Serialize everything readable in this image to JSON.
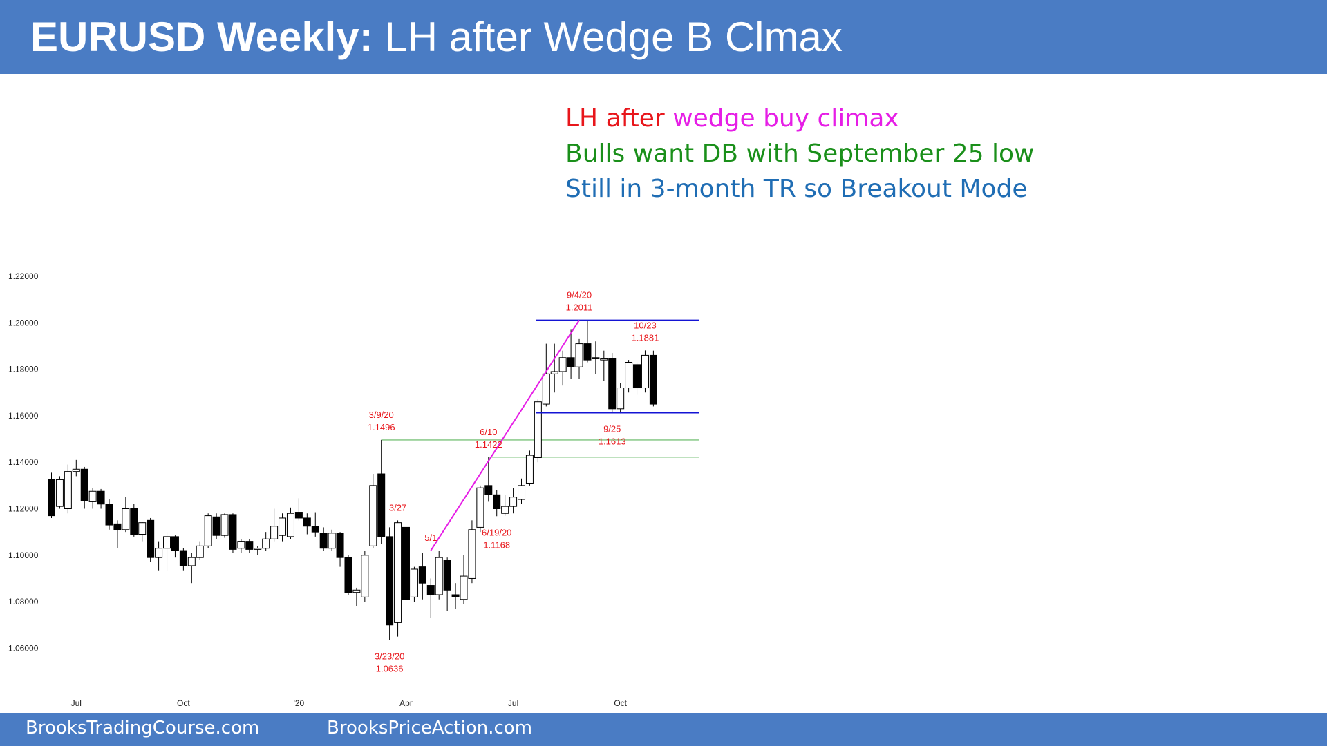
{
  "header": {
    "title_bold": "EURUSD Weekly:",
    "title_rest": " LH after Wedge B Clmax"
  },
  "notes": {
    "line1_a": "LH after ",
    "line1_b": "wedge buy climax",
    "line2": "Bulls want DB with September 25 low",
    "line3": "Still in 3-month TR so Breakout Mode"
  },
  "footer": {
    "left": "BrooksTradingCourse.com",
    "right": "BrooksPriceAction.com"
  },
  "colors": {
    "bar": "#4a7cc4",
    "red": "#e8161b",
    "magenta": "#e61ee6",
    "green": "#1a8f1a",
    "blue": "#1f6db4",
    "channel": "#1414d4",
    "level": "#7cc37c"
  },
  "chart_data": {
    "type": "candlestick",
    "ylim": [
      1.052,
      1.224
    ],
    "yticks": [
      "1.22000",
      "1.20000",
      "1.18000",
      "1.16000",
      "1.14000",
      "1.12000",
      "1.10000",
      "1.08000",
      "1.06000"
    ],
    "xticks": [
      {
        "label": "Jul",
        "i": 3
      },
      {
        "label": "Oct",
        "i": 16
      },
      {
        "label": "'20",
        "i": 30
      },
      {
        "label": "Apr",
        "i": 43
      },
      {
        "label": "Jul",
        "i": 56
      },
      {
        "label": "Oct",
        "i": 69
      }
    ],
    "candles": [
      [
        1.1325,
        1.1355,
        1.116,
        1.117
      ],
      [
        1.121,
        1.134,
        1.12,
        1.1325
      ],
      [
        1.12,
        1.139,
        1.118,
        1.136
      ],
      [
        1.136,
        1.141,
        1.134,
        1.137
      ],
      [
        1.137,
        1.138,
        1.12,
        1.1235
      ],
      [
        1.123,
        1.129,
        1.12,
        1.1275
      ],
      [
        1.1275,
        1.1285,
        1.12,
        1.122
      ],
      [
        1.122,
        1.124,
        1.111,
        1.113
      ],
      [
        1.1135,
        1.115,
        1.103,
        1.111
      ],
      [
        1.111,
        1.125,
        1.11,
        1.12
      ],
      [
        1.12,
        1.122,
        1.108,
        1.109
      ],
      [
        1.109,
        1.1145,
        1.106,
        1.114
      ],
      [
        1.115,
        1.116,
        1.097,
        1.099
      ],
      [
        1.099,
        1.106,
        1.0935,
        1.103
      ],
      [
        1.103,
        1.11,
        1.093,
        1.108
      ],
      [
        1.108,
        1.1085,
        1.099,
        1.102
      ],
      [
        1.102,
        1.103,
        1.0935,
        1.0955
      ],
      [
        1.0955,
        1.101,
        1.088,
        1.099
      ],
      [
        1.099,
        1.106,
        1.098,
        1.104
      ],
      [
        1.104,
        1.118,
        1.103,
        1.117
      ],
      [
        1.1165,
        1.118,
        1.107,
        1.1085
      ],
      [
        1.1085,
        1.118,
        1.1075,
        1.1175
      ],
      [
        1.1175,
        1.118,
        1.101,
        1.1025
      ],
      [
        1.103,
        1.107,
        1.101,
        1.106
      ],
      [
        1.106,
        1.107,
        1.101,
        1.1025
      ],
      [
        1.1025,
        1.104,
        1.1,
        1.103
      ],
      [
        1.103,
        1.11,
        1.102,
        1.107
      ],
      [
        1.107,
        1.12,
        1.106,
        1.1125
      ],
      [
        1.1085,
        1.118,
        1.106,
        1.116
      ],
      [
        1.108,
        1.1205,
        1.107,
        1.118
      ],
      [
        1.1185,
        1.1245,
        1.115,
        1.116
      ],
      [
        1.116,
        1.118,
        1.109,
        1.1125
      ],
      [
        1.1125,
        1.1185,
        1.108,
        1.11
      ],
      [
        1.1095,
        1.112,
        1.102,
        1.103
      ],
      [
        1.103,
        1.111,
        1.102,
        1.1095
      ],
      [
        1.1095,
        1.11,
        1.095,
        1.099
      ],
      [
        1.099,
        1.1,
        1.083,
        1.084
      ],
      [
        1.084,
        1.086,
        1.078,
        1.085
      ],
      [
        1.082,
        1.102,
        1.08,
        1.1
      ],
      [
        1.104,
        1.135,
        1.103,
        1.13
      ],
      [
        1.135,
        1.1496,
        1.105,
        1.108
      ],
      [
        1.108,
        1.112,
        1.0636,
        1.07
      ],
      [
        1.071,
        1.115,
        1.065,
        1.114
      ],
      [
        1.112,
        1.113,
        1.079,
        1.081
      ],
      [
        1.082,
        1.095,
        1.08,
        1.094
      ],
      [
        1.095,
        1.101,
        1.081,
        1.088
      ],
      [
        1.087,
        1.09,
        1.073,
        1.083
      ],
      [
        1.083,
        1.102,
        1.081,
        1.099
      ],
      [
        1.098,
        1.099,
        1.076,
        1.085
      ],
      [
        1.083,
        1.088,
        1.077,
        1.082
      ],
      [
        1.081,
        1.1,
        1.079,
        1.091
      ],
      [
        1.09,
        1.115,
        1.088,
        1.111
      ],
      [
        1.112,
        1.13,
        1.11,
        1.129
      ],
      [
        1.13,
        1.1422,
        1.123,
        1.126
      ],
      [
        1.126,
        1.128,
        1.1168,
        1.12
      ],
      [
        1.118,
        1.126,
        1.117,
        1.121
      ],
      [
        1.121,
        1.129,
        1.118,
        1.125
      ],
      [
        1.124,
        1.133,
        1.122,
        1.13
      ],
      [
        1.131,
        1.145,
        1.13,
        1.143
      ],
      [
        1.142,
        1.167,
        1.14,
        1.166
      ],
      [
        1.165,
        1.191,
        1.164,
        1.178
      ],
      [
        1.178,
        1.191,
        1.17,
        1.179
      ],
      [
        1.179,
        1.188,
        1.173,
        1.185
      ],
      [
        1.185,
        1.197,
        1.176,
        1.181
      ],
      [
        1.181,
        1.193,
        1.176,
        1.191
      ],
      [
        1.191,
        1.2011,
        1.183,
        1.184
      ],
      [
        1.185,
        1.192,
        1.178,
        1.1845
      ],
      [
        1.184,
        1.188,
        1.175,
        1.1845
      ],
      [
        1.1845,
        1.187,
        1.1613,
        1.163
      ],
      [
        1.163,
        1.174,
        1.161,
        1.172
      ],
      [
        1.172,
        1.184,
        1.17,
        1.183
      ],
      [
        1.182,
        1.183,
        1.169,
        1.172
      ],
      [
        1.172,
        1.1881,
        1.17,
        1.186
      ],
      [
        1.186,
        1.188,
        1.164,
        1.165
      ]
    ],
    "annotations": [
      {
        "date": "9/4/20",
        "price": "1.2011",
        "i": 64,
        "y": 1.2011,
        "pos": "above"
      },
      {
        "date": "10/23",
        "price": "1.1881",
        "i": 72,
        "y": 1.1881,
        "pos": "above"
      },
      {
        "date": "3/9/20",
        "price": "1.1496",
        "i": 40,
        "y": 1.1496,
        "pos": "above"
      },
      {
        "date": "6/10",
        "price": "1.1422",
        "i": 53,
        "y": 1.1422,
        "pos": "above"
      },
      {
        "date": "9/25",
        "price": "1.1613",
        "i": 68,
        "y": 1.1613,
        "pos": "below"
      },
      {
        "date": "3/27",
        "price": "",
        "i": 42,
        "y": 1.115,
        "pos": "above"
      },
      {
        "date": "5/1",
        "price": "",
        "i": 46,
        "y": 1.102,
        "pos": "above"
      },
      {
        "date": "6/19/20",
        "price": "1.1168",
        "i": 54,
        "y": 1.1168,
        "pos": "below"
      },
      {
        "date": "3/23/20",
        "price": "1.0636",
        "i": 41,
        "y": 1.0636,
        "pos": "below"
      }
    ],
    "lines": {
      "channel_high": {
        "y": 1.2011,
        "from_i": 59,
        "to_i": 76
      },
      "channel_low": {
        "y": 1.1613,
        "from_i": 59,
        "to_i": 76
      },
      "level_1": {
        "y": 1.1496,
        "from_i": 40,
        "to_i": 76
      },
      "level_2": {
        "y": 1.1422,
        "from_i": 53,
        "to_i": 76
      },
      "wedge": [
        {
          "i": 46,
          "y": 1.102
        },
        {
          "i": 64,
          "y": 1.2011
        }
      ]
    }
  }
}
